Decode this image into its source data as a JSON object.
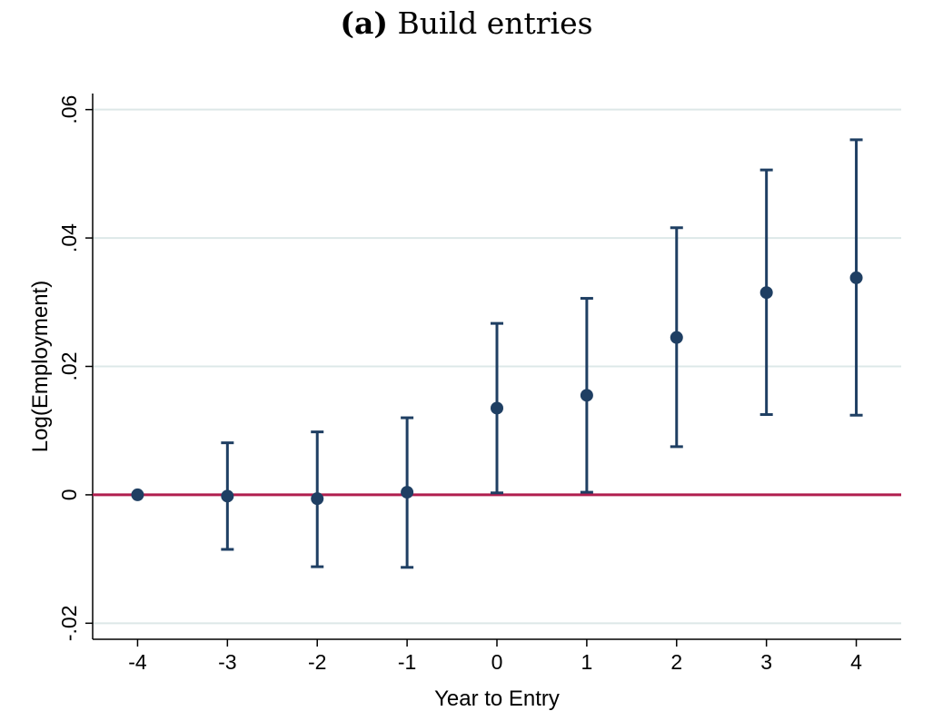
{
  "chart_data": {
    "type": "scatter",
    "subtitle_tag": "(a)",
    "title": "Build entries",
    "xlabel": "Year to Entry",
    "ylabel": "Log(Employment)",
    "x": [
      -4,
      -3,
      -2,
      -1,
      0,
      1,
      2,
      3,
      4
    ],
    "estimates": [
      0.0,
      -0.0002,
      -0.0006,
      0.0004,
      0.0135,
      0.0155,
      0.0245,
      0.0315,
      0.0338
    ],
    "ci_lower": [
      null,
      -0.0085,
      -0.0112,
      -0.0113,
      0.0003,
      0.0004,
      0.0075,
      0.0125,
      0.0124
    ],
    "ci_upper": [
      null,
      0.0081,
      0.0098,
      0.012,
      0.0267,
      0.0306,
      0.0416,
      0.0506,
      0.0553
    ],
    "xlim": [
      -4.5,
      4.5
    ],
    "ylim": [
      -0.0225,
      0.0625
    ],
    "yticks": [
      -0.02,
      0,
      0.02,
      0.04,
      0.06
    ],
    "ytick_labels": [
      "-.02",
      "0",
      ".02",
      ".04",
      ".06"
    ],
    "xticks": [
      -4,
      -3,
      -2,
      -1,
      0,
      1,
      2,
      3,
      4
    ],
    "xtick_labels": [
      "-4",
      "-3",
      "-2",
      "-1",
      "0",
      "1",
      "2",
      "3",
      "4"
    ],
    "reference_line_y": 0,
    "grid": true,
    "colors": {
      "marker": "#1f3f63",
      "reference_line": "#b01e4e",
      "grid": "#dde8e8",
      "axis": "#000000"
    }
  }
}
